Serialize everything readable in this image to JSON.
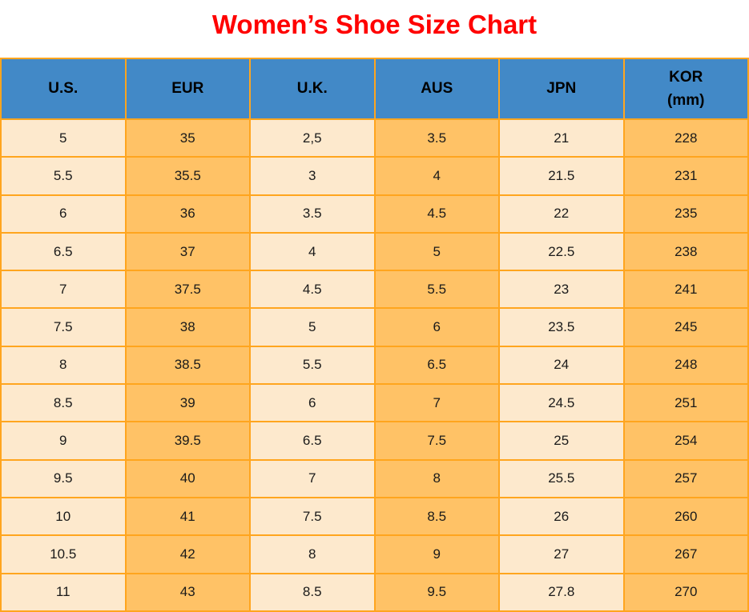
{
  "title": {
    "text": "Women’s Shoe Size Chart"
  },
  "colors": {
    "title": "#FF0000",
    "header_bg": "#4289C7",
    "header_text": "#000000",
    "cell_cream": "#FDE9CD",
    "cell_orange": "#FFC266",
    "border": "#FFA51E",
    "cell_text": "#1A1A1A",
    "background": "#FFFFFF"
  },
  "chart_data": {
    "type": "table",
    "title": "Women’s Shoe Size Chart",
    "columns": [
      "U.S.",
      "EUR",
      "U.K.",
      "AUS",
      "JPN",
      "KOR (mm)"
    ],
    "header_display": [
      "U.S.",
      "EUR",
      "U.K.",
      "AUS",
      "JPN",
      "KOR\n(mm)"
    ],
    "rows": [
      [
        "5",
        "35",
        "2,5",
        "3.5",
        "21",
        "228"
      ],
      [
        "5.5",
        "35.5",
        "3",
        "4",
        "21.5",
        "231"
      ],
      [
        "6",
        "36",
        "3.5",
        "4.5",
        "22",
        "235"
      ],
      [
        "6.5",
        "37",
        "4",
        "5",
        "22.5",
        "238"
      ],
      [
        "7",
        "37.5",
        "4.5",
        "5.5",
        "23",
        "241"
      ],
      [
        "7.5",
        "38",
        "5",
        "6",
        "23.5",
        "245"
      ],
      [
        "8",
        "38.5",
        "5.5",
        "6.5",
        "24",
        "248"
      ],
      [
        "8.5",
        "39",
        "6",
        "7",
        "24.5",
        "251"
      ],
      [
        "9",
        "39.5",
        "6.5",
        "7.5",
        "25",
        "254"
      ],
      [
        "9.5",
        "40",
        "7",
        "8",
        "25.5",
        "257"
      ],
      [
        "10",
        "41",
        "7.5",
        "8.5",
        "26",
        "260"
      ],
      [
        "10.5",
        "42",
        "8",
        "9",
        "27",
        "267"
      ],
      [
        "11",
        "43",
        "8.5",
        "9.5",
        "27.8",
        "270"
      ]
    ],
    "layout": {
      "column_fill_pattern": [
        "cream",
        "orange",
        "cream",
        "orange",
        "cream",
        "orange"
      ],
      "grid": true
    }
  }
}
